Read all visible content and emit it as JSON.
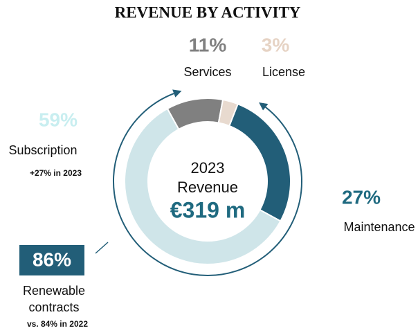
{
  "chart_data": {
    "type": "donut",
    "title": "REVENUE BY ACTIVITY",
    "categories": [
      "Services",
      "License",
      "Maintenance",
      "Subscription"
    ],
    "values": [
      11,
      3,
      27,
      59
    ],
    "value_labels": [
      "11%",
      "3%",
      "27%",
      "59%"
    ],
    "colors": [
      "#808080",
      "#e8dacf",
      "#225e78",
      "#cfe5e9"
    ],
    "label_colors": [
      "#808080",
      "#e6d3c4",
      "#1f6a80",
      "#c8eef0"
    ],
    "center_text": {
      "year": "2023",
      "label": "Revenue",
      "value": "€319 m"
    },
    "annotations": {
      "subscription_growth": "+27% in 2023",
      "renewable_share": "86%",
      "renewable_label": [
        "Renewable",
        "contracts"
      ],
      "renewable_comparison": "vs. 84% in 2022"
    }
  }
}
